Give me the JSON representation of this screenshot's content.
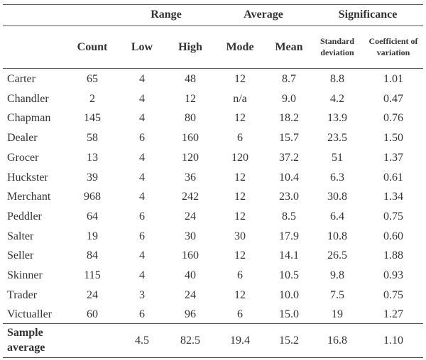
{
  "groups": {
    "range": "Range",
    "average": "Average",
    "significance": "Significance"
  },
  "columns": {
    "count": "Count",
    "low": "Low",
    "high": "High",
    "mode": "Mode",
    "mean": "Mean",
    "sd_line1": "Standard",
    "sd_line2": "deviation",
    "cv_line1": "Coefficient of",
    "cv_line2": "variation"
  },
  "rows": [
    {
      "label": "Carter",
      "count": "65",
      "low": "4",
      "high": "48",
      "mode": "12",
      "mean": "8.7",
      "sd": "8.8",
      "cv": "1.01"
    },
    {
      "label": "Chandler",
      "count": "2",
      "low": "4",
      "high": "12",
      "mode": "n/a",
      "mean": "9.0",
      "sd": "4.2",
      "cv": "0.47"
    },
    {
      "label": "Chapman",
      "count": "145",
      "low": "4",
      "high": "80",
      "mode": "12",
      "mean": "18.2",
      "sd": "13.9",
      "cv": "0.76"
    },
    {
      "label": "Dealer",
      "count": "58",
      "low": "6",
      "high": "160",
      "mode": "6",
      "mean": "15.7",
      "sd": "23.5",
      "cv": "1.50"
    },
    {
      "label": "Grocer",
      "count": "13",
      "low": "4",
      "high": "120",
      "mode": "120",
      "mean": "37.2",
      "sd": "51",
      "cv": "1.37"
    },
    {
      "label": "Huckster",
      "count": "39",
      "low": "4",
      "high": "36",
      "mode": "12",
      "mean": "10.4",
      "sd": "6.3",
      "cv": "0.61"
    },
    {
      "label": "Merchant",
      "count": "968",
      "low": "4",
      "high": "242",
      "mode": "12",
      "mean": "23.0",
      "sd": "30.8",
      "cv": "1.34"
    },
    {
      "label": "Peddler",
      "count": "64",
      "low": "6",
      "high": "24",
      "mode": "12",
      "mean": "8.5",
      "sd": "6.4",
      "cv": "0.75"
    },
    {
      "label": "Salter",
      "count": "19",
      "low": "6",
      "high": "30",
      "mode": "30",
      "mean": "17.9",
      "sd": "10.8",
      "cv": "0.60"
    },
    {
      "label": "Seller",
      "count": "84",
      "low": "4",
      "high": "160",
      "mode": "12",
      "mean": "14.1",
      "sd": "26.5",
      "cv": "1.88"
    },
    {
      "label": "Skinner",
      "count": "115",
      "low": "4",
      "high": "40",
      "mode": "6",
      "mean": "10.5",
      "sd": "9.8",
      "cv": "0.93"
    },
    {
      "label": "Trader",
      "count": "24",
      "low": "3",
      "high": "24",
      "mode": "12",
      "mean": "10.0",
      "sd": "7.5",
      "cv": "0.75"
    },
    {
      "label": "Victualler",
      "count": "60",
      "low": "6",
      "high": "96",
      "mode": "6",
      "mean": "15.0",
      "sd": "19",
      "cv": "1.27"
    }
  ],
  "summary": {
    "label_line1": "Sample",
    "label_line2": "average",
    "count": "",
    "low": "4.5",
    "high": "82.5",
    "mode": "19.4",
    "mean": "15.2",
    "sd": "16.8",
    "cv": "1.10"
  }
}
